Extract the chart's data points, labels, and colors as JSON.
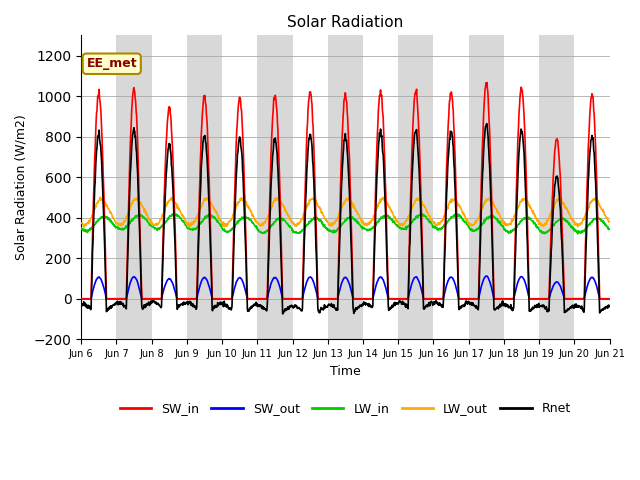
{
  "title": "Solar Radiation",
  "xlabel": "Time",
  "ylabel": "Solar Radiation (W/m2)",
  "ylim": [
    -200,
    1300
  ],
  "yticks": [
    -200,
    0,
    200,
    400,
    600,
    800,
    1000,
    1200
  ],
  "num_days": 15,
  "points_per_day": 96,
  "annotation_text": "EE_met",
  "bg_color": "#ffffff",
  "plot_bg_color": "#d8d8d8",
  "band_color_light": "#ffffff",
  "band_color_dark": "#d8d8d8",
  "grid_color": "#aaaaaa",
  "SW_in_color": "#ff0000",
  "SW_out_color": "#0000ff",
  "LW_in_color": "#00cc00",
  "LW_out_color": "#ffaa00",
  "Rnet_color": "#000000",
  "line_width": 1.2,
  "SW_in_peaks": [
    1010,
    1035,
    940,
    1000,
    990,
    1005,
    1025,
    1000,
    1020,
    1020,
    1020,
    1060,
    1040,
    790,
    1005
  ],
  "LW_in_base": 370,
  "LW_in_amp": 35,
  "LW_out_base": 420,
  "LW_out_amp": 55,
  "tick_labels": [
    "Jun 6",
    "Jun 7",
    "Jun 8",
    "Jun 9",
    "Jun 10",
    "Jun 11",
    "Jun 12",
    "Jun 13",
    "Jun 14",
    "Jun 15",
    "Jun 16",
    "Jun 17",
    "Jun 18",
    "Jun 19",
    "Jun 20",
    "Jun 21"
  ]
}
